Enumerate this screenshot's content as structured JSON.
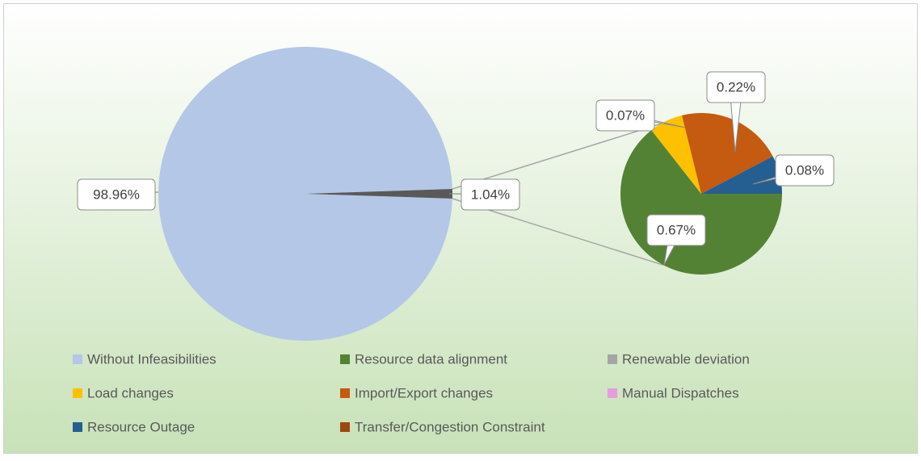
{
  "chart_data": {
    "type": "pie-of-pie",
    "categories": [
      "Without Infeasibilities",
      "Resource data alignment",
      "Renewable deviation",
      "Load changes",
      "Import/Export changes",
      "Manual Dispatches",
      "Resource Outage",
      "Transfer/Congestion Constraint"
    ],
    "values": [
      98.96,
      0.67,
      0,
      0.07,
      0.22,
      0,
      0.08,
      0
    ],
    "value_labels": [
      "98.96%",
      "0.67%",
      null,
      "0.07%",
      "0.22%",
      null,
      "0.08%",
      null
    ],
    "colors": [
      "#b4c7e7",
      "#548235",
      "#a5a5a5",
      "#ffc000",
      "#c55a11",
      "#e59edd",
      "#255e91",
      "#9e480e"
    ],
    "other": {
      "value": 1.04,
      "label": "1.04%",
      "color": "#595959"
    },
    "legend": "bottom"
  }
}
